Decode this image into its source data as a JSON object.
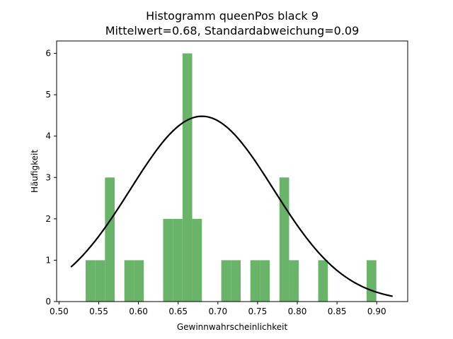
{
  "chart_data": {
    "type": "bar",
    "title": "Histogramm queenPos black 9",
    "subtitle": "Mittelwert=0.68, Standardabweichung=0.09",
    "xlabel": "Gewinnwahrscheinlichkeit",
    "ylabel": "Häufigkeit",
    "xlim": [
      0.497,
      0.939
    ],
    "ylim": [
      0,
      6.3
    ],
    "xticks": [
      0.5,
      0.55,
      0.6,
      0.65,
      0.7,
      0.75,
      0.8,
      0.85,
      0.9
    ],
    "xtick_labels": [
      "0.50",
      "0.55",
      "0.60",
      "0.65",
      "0.70",
      "0.75",
      "0.80",
      "0.85",
      "0.90"
    ],
    "yticks": [
      0,
      1,
      2,
      3,
      4,
      5,
      6
    ],
    "ytick_labels": [
      "0",
      "1",
      "2",
      "3",
      "4",
      "5",
      "6"
    ],
    "bin_width": 0.0122,
    "bins": [
      {
        "x0": 0.5335,
        "count": 1
      },
      {
        "x0": 0.5457,
        "count": 1
      },
      {
        "x0": 0.5579,
        "count": 3
      },
      {
        "x0": 0.5823,
        "count": 1
      },
      {
        "x0": 0.5945,
        "count": 1
      },
      {
        "x0": 0.6311,
        "count": 2
      },
      {
        "x0": 0.6433,
        "count": 2
      },
      {
        "x0": 0.6555,
        "count": 6
      },
      {
        "x0": 0.6677,
        "count": 2
      },
      {
        "x0": 0.7043,
        "count": 1
      },
      {
        "x0": 0.7165,
        "count": 1
      },
      {
        "x0": 0.7409,
        "count": 1
      },
      {
        "x0": 0.7531,
        "count": 1
      },
      {
        "x0": 0.7775,
        "count": 3
      },
      {
        "x0": 0.7897,
        "count": 1
      },
      {
        "x0": 0.8263,
        "count": 1
      },
      {
        "x0": 0.8873,
        "count": 1
      }
    ],
    "normal_curve": {
      "mean": 0.68,
      "std": 0.09,
      "peak": 4.48,
      "x_range": [
        0.515,
        0.92
      ]
    },
    "bar_color": "#6ab46a",
    "curve_color": "#000000"
  }
}
